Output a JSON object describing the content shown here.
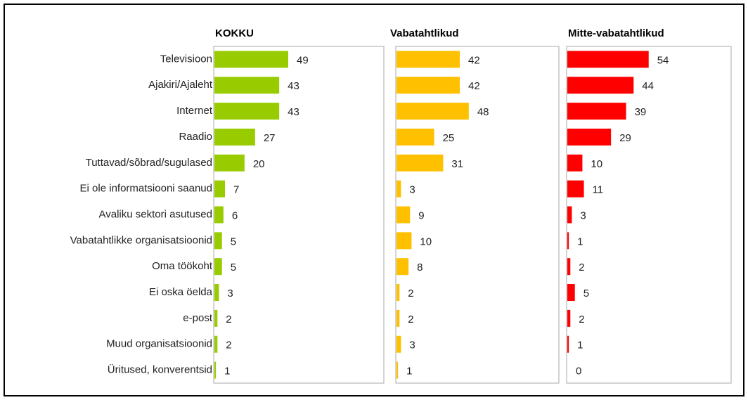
{
  "chart_data": {
    "type": "bar",
    "orientation": "horizontal",
    "categories": [
      "Televisioon",
      "Ajakiri/Ajaleht",
      "Internet",
      "Raadio",
      "Tuttavad/sõbrad/sugulased",
      "Ei ole informatsiooni saanud",
      "Avaliku sektori asutused",
      "Vabatahtlikke organisatsioonid",
      "Oma töökoht",
      "Ei oska öelda",
      "e-post",
      "Muud organisatsioonid",
      "Üritused, konverentsid"
    ],
    "series": [
      {
        "name": "KOKKU",
        "color": "#99cc00",
        "values": [
          49,
          43,
          43,
          27,
          20,
          7,
          6,
          5,
          5,
          3,
          2,
          2,
          1
        ]
      },
      {
        "name": "Vabatahtlikud",
        "color": "#ffc000",
        "values": [
          42,
          42,
          48,
          25,
          31,
          3,
          9,
          10,
          8,
          2,
          2,
          3,
          1
        ]
      },
      {
        "name": "Mitte-vabatahtlikud",
        "color": "#ff0000",
        "values": [
          54,
          44,
          39,
          29,
          10,
          11,
          3,
          1,
          2,
          5,
          2,
          1,
          0
        ]
      }
    ],
    "xlim": [
      0,
      112
    ]
  }
}
